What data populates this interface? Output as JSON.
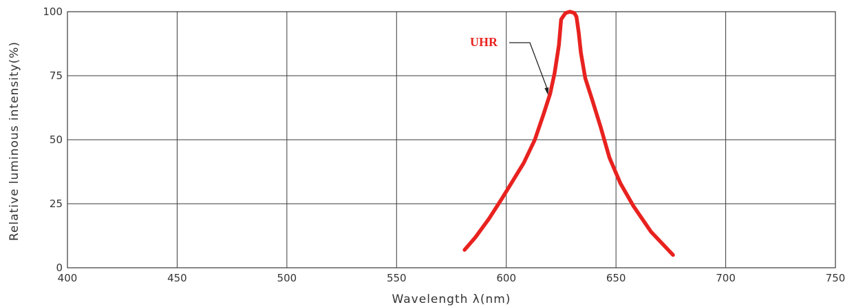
{
  "chart_data": {
    "type": "line",
    "xlabel": "Wavelength  λ(nm)",
    "ylabel": "Relative luminous intensity(%)",
    "xlim": [
      400,
      750
    ],
    "ylim": [
      0,
      100
    ],
    "x_ticks": [
      "400",
      "450",
      "500",
      "550",
      "600",
      "650",
      "700",
      "750"
    ],
    "y_ticks": [
      "0",
      "25",
      "50",
      "75",
      "100"
    ],
    "grid": true,
    "series": [
      {
        "name": "UHR",
        "color": "#e8221f",
        "x": [
          581,
          586,
          592,
          598,
          603,
          608,
          613,
          617,
          620,
          622,
          624,
          625,
          627,
          629,
          631,
          632,
          633,
          634,
          636,
          639,
          643,
          647,
          652,
          658,
          666,
          676
        ],
        "y": [
          7,
          12,
          19,
          27,
          34,
          41,
          50,
          60,
          68,
          76,
          87,
          97,
          99.5,
          100,
          99.5,
          98,
          92,
          84,
          74,
          66,
          55,
          43,
          33,
          24,
          14,
          5
        ]
      }
    ],
    "annotations": [
      {
        "text": "UHR",
        "color": "#e8221f",
        "points_to": {
          "x": 619,
          "y": 68
        }
      }
    ]
  }
}
